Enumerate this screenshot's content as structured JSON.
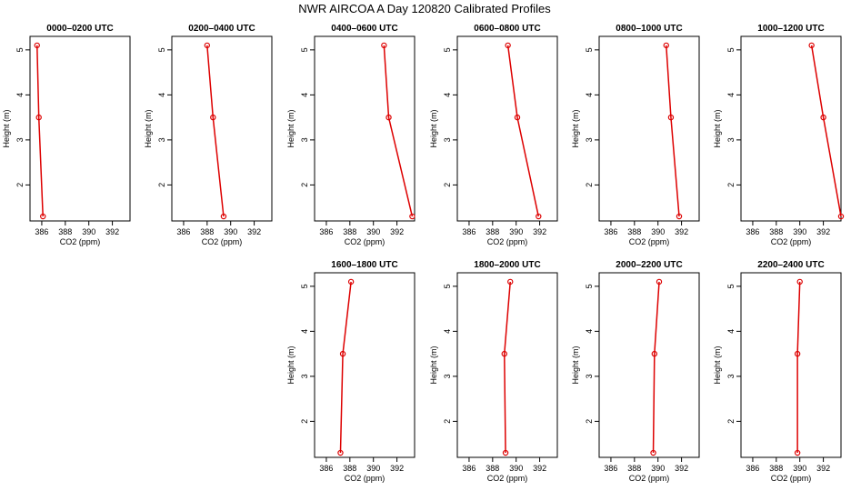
{
  "title": "NWR AIRCOA A  Day 120820  Calibrated Profiles",
  "chart_data": [
    {
      "type": "line",
      "title": "0000–0200 UTC",
      "xlabel": "CO2 (ppm)",
      "ylabel": "Height (m)",
      "xlim": [
        385,
        393.5
      ],
      "ylim": [
        1.2,
        5.3
      ],
      "xticks": [
        386,
        388,
        390,
        392
      ],
      "yticks": [
        2,
        3,
        4,
        5
      ],
      "series": [
        {
          "x": [
            385.6,
            385.75,
            386.1
          ],
          "y": [
            5.1,
            3.5,
            1.3
          ]
        }
      ]
    },
    {
      "type": "line",
      "title": "0200–0400 UTC",
      "xlabel": "CO2 (ppm)",
      "ylabel": "Height (m)",
      "xlim": [
        385,
        393.5
      ],
      "ylim": [
        1.2,
        5.3
      ],
      "xticks": [
        386,
        388,
        390,
        392
      ],
      "yticks": [
        2,
        3,
        4,
        5
      ],
      "series": [
        {
          "x": [
            388.0,
            388.5,
            389.4
          ],
          "y": [
            5.1,
            3.5,
            1.3
          ]
        }
      ]
    },
    {
      "type": "line",
      "title": "0400–0600 UTC",
      "xlabel": "CO2 (ppm)",
      "ylabel": "Height (m)",
      "xlim": [
        385,
        393.5
      ],
      "ylim": [
        1.2,
        5.3
      ],
      "xticks": [
        386,
        388,
        390,
        392
      ],
      "yticks": [
        2,
        3,
        4,
        5
      ],
      "series": [
        {
          "x": [
            390.9,
            391.3,
            393.3
          ],
          "y": [
            5.1,
            3.5,
            1.3
          ]
        }
      ]
    },
    {
      "type": "line",
      "title": "0600–0800 UTC",
      "xlabel": "CO2 (ppm)",
      "ylabel": "Height (m)",
      "xlim": [
        385,
        393.5
      ],
      "ylim": [
        1.2,
        5.3
      ],
      "xticks": [
        386,
        388,
        390,
        392
      ],
      "yticks": [
        2,
        3,
        4,
        5
      ],
      "series": [
        {
          "x": [
            389.3,
            390.1,
            391.9
          ],
          "y": [
            5.1,
            3.5,
            1.3
          ]
        }
      ]
    },
    {
      "type": "line",
      "title": "0800–1000 UTC",
      "xlabel": "CO2 (ppm)",
      "ylabel": "Height (m)",
      "xlim": [
        385,
        393.5
      ],
      "ylim": [
        1.2,
        5.3
      ],
      "xticks": [
        386,
        388,
        390,
        392
      ],
      "yticks": [
        2,
        3,
        4,
        5
      ],
      "series": [
        {
          "x": [
            390.7,
            391.1,
            391.8
          ],
          "y": [
            5.1,
            3.5,
            1.3
          ]
        }
      ]
    },
    {
      "type": "line",
      "title": "1000–1200 UTC",
      "xlabel": "CO2 (ppm)",
      "ylabel": "Height (m)",
      "xlim": [
        385,
        393.5
      ],
      "ylim": [
        1.2,
        5.3
      ],
      "xticks": [
        386,
        388,
        390,
        392
      ],
      "yticks": [
        2,
        3,
        4,
        5
      ],
      "series": [
        {
          "x": [
            391.0,
            392.0,
            393.5
          ],
          "y": [
            5.1,
            3.5,
            1.3
          ]
        }
      ]
    },
    {
      "type": "line",
      "title": "1600–1800 UTC",
      "xlabel": "CO2 (ppm)",
      "ylabel": "Height (m)",
      "xlim": [
        385,
        393.5
      ],
      "ylim": [
        1.2,
        5.3
      ],
      "xticks": [
        386,
        388,
        390,
        392
      ],
      "yticks": [
        2,
        3,
        4,
        5
      ],
      "series": [
        {
          "x": [
            388.1,
            387.4,
            387.2
          ],
          "y": [
            5.1,
            3.5,
            1.3
          ]
        }
      ]
    },
    {
      "type": "line",
      "title": "1800–2000 UTC",
      "xlabel": "CO2 (ppm)",
      "ylabel": "Height (m)",
      "xlim": [
        385,
        393.5
      ],
      "ylim": [
        1.2,
        5.3
      ],
      "xticks": [
        386,
        388,
        390,
        392
      ],
      "yticks": [
        2,
        3,
        4,
        5
      ],
      "series": [
        {
          "x": [
            389.5,
            389.0,
            389.1
          ],
          "y": [
            5.1,
            3.5,
            1.3
          ]
        }
      ]
    },
    {
      "type": "line",
      "title": "2000–2200 UTC",
      "xlabel": "CO2 (ppm)",
      "ylabel": "Height (m)",
      "xlim": [
        385,
        393.5
      ],
      "ylim": [
        1.2,
        5.3
      ],
      "xticks": [
        386,
        388,
        390,
        392
      ],
      "yticks": [
        2,
        3,
        4,
        5
      ],
      "series": [
        {
          "x": [
            390.1,
            389.7,
            389.6
          ],
          "y": [
            5.1,
            3.5,
            1.3
          ]
        }
      ]
    },
    {
      "type": "line",
      "title": "2200–2400 UTC",
      "xlabel": "CO2 (ppm)",
      "ylabel": "Height (m)",
      "xlim": [
        385,
        393.5
      ],
      "ylim": [
        1.2,
        5.3
      ],
      "xticks": [
        386,
        388,
        390,
        392
      ],
      "yticks": [
        2,
        3,
        4,
        5
      ],
      "series": [
        {
          "x": [
            390.0,
            389.8,
            389.8
          ],
          "y": [
            5.1,
            3.5,
            1.3
          ]
        }
      ]
    }
  ],
  "colors": {
    "line": "#dd0000",
    "marker": "#dd0000",
    "axis": "#000000"
  }
}
